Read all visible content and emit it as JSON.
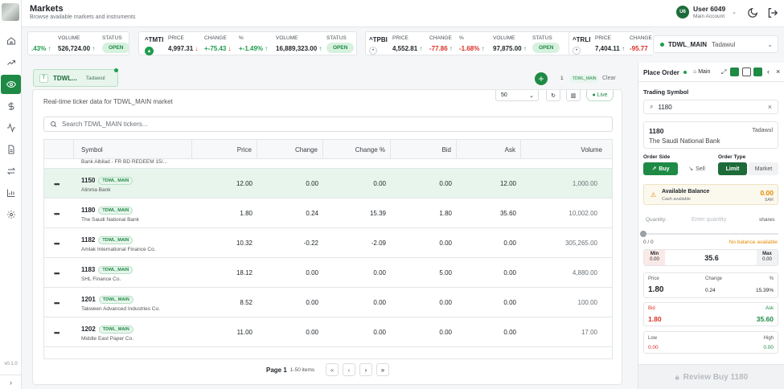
{
  "header": {
    "title": "Markets",
    "subtitle": "Browse available markets and instruments"
  },
  "user": {
    "initials": "U6",
    "name": "User 6049",
    "account": "Main Account"
  },
  "version": "v0.1.0",
  "ticker": {
    "first": {
      "pct": ".43%",
      "volume_label": "VOLUME",
      "volume": "526,724.00",
      "status_label": "STATUS",
      "status": "OPEN"
    },
    "cards": [
      {
        "symbol": "^TMTI",
        "price_label": "PRICE",
        "price": "4,997.31",
        "change_label": "CHANGE",
        "change": "+-75.43",
        "pct_label": "%",
        "pct": "+-1.49%",
        "volume_label": "VOLUME",
        "volume": "16,889,323.00",
        "status_label": "STATUS",
        "status": "OPEN"
      },
      {
        "symbol": "^TPBI",
        "price_label": "PRICE",
        "price": "4,552.81",
        "change_label": "CHANGE",
        "change": "-77.86",
        "pct_label": "%",
        "pct": "-1.68%",
        "volume_label": "VOLUME",
        "volume": "97,875.00",
        "status_label": "STATUS",
        "status": "OPEN"
      },
      {
        "symbol": "^TRLI",
        "price_label": "PRICE",
        "price": "7,404.11",
        "change_label": "CHANGE",
        "change": "-95.77"
      }
    ],
    "market_selector": {
      "symbol": "TDWL_MAIN",
      "market": "Tadawul"
    }
  },
  "chips": {
    "symbol": "TDWL...",
    "market": "Tadawul",
    "count": "1",
    "tag": "TDWL_MAIN",
    "clear": "Clear"
  },
  "panel": {
    "description": "Real-time ticker data for TDWL_MAIN market",
    "page_size": "50",
    "live": "Live",
    "search_placeholder": "Search TDWL_MAIN tickers...",
    "columns": [
      "Symbol",
      "Price",
      "Change",
      "Change %",
      "Bid",
      "Ask",
      "Volume"
    ],
    "partial_row": "Bank Albilad - FR BD REDEEM 15/...",
    "rows": [
      {
        "code": "1150",
        "tag": "TDWL_MAIN",
        "name": "Alinma Bank",
        "price": "12.00",
        "change": "0.00",
        "change_pct": "0.00",
        "bid": "0.00",
        "ask": "12.00",
        "volume": "1,000.00",
        "selected": true
      },
      {
        "code": "1180",
        "tag": "TDWL_MAIN",
        "name": "The Saudi National Bank",
        "price": "1.80",
        "change": "0.24",
        "change_pct": "15.39",
        "bid": "1.80",
        "ask": "35.60",
        "volume": "10,002.00"
      },
      {
        "code": "1182",
        "tag": "TDWL_MAIN",
        "name": "Amlak International Finance Co.",
        "price": "10.32",
        "change": "-0.22",
        "change_pct": "-2.09",
        "bid": "0.00",
        "ask": "0.00",
        "volume": "305,265.00"
      },
      {
        "code": "1183",
        "tag": "TDWL_MAIN",
        "name": "SHL Finance Co.",
        "price": "18.12",
        "change": "0.00",
        "change_pct": "0.00",
        "bid": "5.00",
        "ask": "0.00",
        "volume": "4,880.00"
      },
      {
        "code": "1201",
        "tag": "TDWL_MAIN",
        "name": "Takween Advanced Industries Co.",
        "price": "8.52",
        "change": "0.00",
        "change_pct": "0.00",
        "bid": "0.00",
        "ask": "0.00",
        "volume": "100.00"
      },
      {
        "code": "1202",
        "tag": "TDWL_MAIN",
        "name": "Middle East Paper Co.",
        "price": "11.00",
        "change": "0.00",
        "change_pct": "0.00",
        "bid": "0.00",
        "ask": "0.00",
        "volume": "17.00"
      }
    ],
    "pager": {
      "page": "Page 1",
      "items": "1-50 items"
    }
  },
  "order": {
    "title": "Place Order",
    "account": "Main",
    "trading_symbol_label": "Trading Symbol",
    "search_value": "1180",
    "selected": {
      "code": "1180",
      "market": "Tadawul",
      "name": "The Saudi National Bank"
    },
    "side_label": "Order Side",
    "buy": "Buy",
    "sell": "Sell",
    "type_label": "Order Type",
    "limit": "Limit",
    "market": "Market",
    "balance_label": "Available Balance",
    "cash_label": "Cash available",
    "balance": "0.00",
    "currency": "SAR",
    "quantity_label": "Quantity:",
    "quantity_placeholder": "Enter quantity",
    "shares": "shares",
    "slider_range": "0 / 0",
    "no_balance": "No balance available",
    "min_label": "Min",
    "min": "0.00",
    "mid_price": "35.6",
    "max_label": "Max",
    "max": "0.00",
    "price_label": "Price",
    "price": "1.80",
    "change_label": "Change",
    "change": "0.24",
    "pct_label": "%",
    "pct": "15.39%",
    "bid_label": "Bid",
    "bid": "1.80",
    "ask_label": "Ask",
    "ask": "35.60",
    "low_label": "Low",
    "low": "0.00",
    "high_label": "High",
    "high": "0.00",
    "review": "Review Buy 1180"
  }
}
